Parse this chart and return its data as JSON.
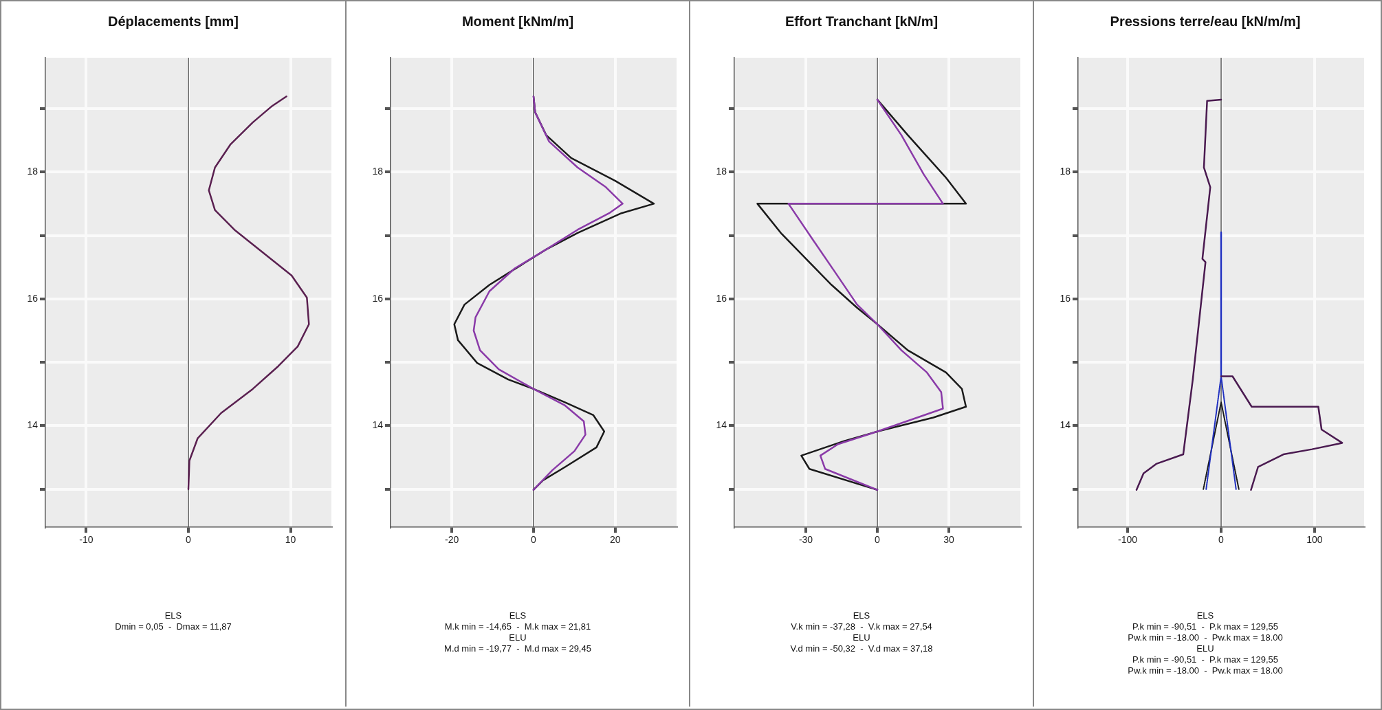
{
  "chart_data": [
    {
      "type": "line",
      "title": "Déplacements [mm]",
      "xlim": [
        -14,
        14
      ],
      "xticks": [
        -10,
        0,
        10
      ],
      "ylim": [
        12.4,
        19.8
      ],
      "yticks": [
        {
          "value": 13,
          "label": null
        },
        14,
        {
          "value": 15,
          "label": null
        },
        16,
        {
          "value": 17,
          "label": null
        },
        18,
        {
          "value": 19,
          "label": null
        }
      ],
      "grid": true,
      "marker": "none",
      "line_style": "solid",
      "ref_lines": [
        {
          "axis": "x",
          "value": 0,
          "color": "#555555"
        }
      ],
      "series": [
        {
          "color": "#5a2050",
          "x": [
            0,
            0.1,
            0.9,
            3.2,
            6.3,
            8.8,
            10.7,
            11.8,
            11.6,
            10.1,
            7.3,
            4.5,
            2.6,
            2.0,
            2.6,
            4.1,
            6.3,
            8.2,
            9.6
          ],
          "values": [
            13.0,
            13.45,
            13.8,
            14.2,
            14.58,
            14.94,
            15.25,
            15.6,
            16.02,
            16.37,
            16.73,
            17.09,
            17.4,
            17.71,
            18.07,
            18.43,
            18.78,
            19.04,
            19.19
          ]
        }
      ],
      "annotations": [
        "ELS",
        "Dmin = 0,05  -  Dmax = 11,87"
      ]
    },
    {
      "type": "line",
      "title": "Moment [kNm/m]",
      "xlim": [
        -35,
        35
      ],
      "xticks": [
        -20,
        0,
        20
      ],
      "ylim": [
        12.4,
        19.8
      ],
      "yticks": [
        {
          "value": 13,
          "label": null
        },
        14,
        {
          "value": 15,
          "label": null
        },
        16,
        {
          "value": 17,
          "label": null
        },
        18,
        {
          "value": 19,
          "label": null
        }
      ],
      "grid": true,
      "marker": "none",
      "line_style": "solid",
      "ref_lines": [
        {
          "axis": "x",
          "value": 0,
          "color": "#555555"
        }
      ],
      "series": [
        {
          "color": "#8a3aa8",
          "x": [
            0,
            0.4,
            3.8,
            10.8,
            17.7,
            21.81,
            18.5,
            10.8,
            3.1,
            -4.6,
            -10.8,
            -14.2,
            -14.65,
            -13.1,
            -8.5,
            0,
            7.7,
            12.3,
            12.7,
            10,
            4.6,
            0
          ],
          "values": [
            19.19,
            18.94,
            18.48,
            18.07,
            17.76,
            17.5,
            17.35,
            17.09,
            16.78,
            16.48,
            16.12,
            15.71,
            15.5,
            15.19,
            14.89,
            14.58,
            14.32,
            14.07,
            13.86,
            13.6,
            13.3,
            12.99
          ]
        },
        {
          "color": "#1a1a1a",
          "x": [
            0,
            0.4,
            3.1,
            9.2,
            20,
            29.45,
            21.5,
            10.8,
            3.1,
            -3.1,
            -10.8,
            -16.9,
            -19.4,
            -18.5,
            -13.8,
            -6.2,
            0,
            7.7,
            14.6,
            17.3,
            15.4,
            7.7,
            2.3,
            0
          ],
          "values": [
            19.19,
            18.94,
            18.58,
            18.22,
            17.86,
            17.5,
            17.35,
            17.04,
            16.78,
            16.53,
            16.22,
            15.91,
            15.6,
            15.35,
            14.99,
            14.73,
            14.58,
            14.37,
            14.17,
            13.91,
            13.66,
            13.35,
            13.14,
            12.99
          ]
        }
      ],
      "annotations": [
        "ELS",
        "M.k min = -14,65  -  M.k max = 21,81",
        "ELU",
        "M.d min = -19,77  -  M.d max = 29,45"
      ]
    },
    {
      "type": "line",
      "title": "Effort Tranchant [kN/m]",
      "xlim": [
        -60,
        60
      ],
      "xticks": [
        -30,
        0,
        30
      ],
      "ylim": [
        12.4,
        19.8
      ],
      "yticks": [
        {
          "value": 13,
          "label": null
        },
        14,
        {
          "value": 15,
          "label": null
        },
        16,
        {
          "value": 17,
          "label": null
        },
        18,
        {
          "value": 19,
          "label": null
        }
      ],
      "grid": true,
      "marker": "none",
      "line_style": "solid",
      "ref_lines": [
        {
          "axis": "x",
          "value": 0,
          "color": "#555555"
        }
      ],
      "series": [
        {
          "color": "#8a3aa8",
          "x": [
            0,
            10.1,
            19.5,
            27.54,
            -37.28,
            -27.2,
            -17.9,
            -8.5,
            0,
            10.1,
            20.8,
            26.8,
            27.54,
            0,
            -16.5,
            -23.9,
            -21.9,
            0
          ],
          "values": [
            19.14,
            18.58,
            17.96,
            17.5,
            17.5,
            16.94,
            16.43,
            15.91,
            15.6,
            15.19,
            14.84,
            14.53,
            14.27,
            13.91,
            13.71,
            13.53,
            13.32,
            12.99
          ]
        },
        {
          "color": "#1a1a1a",
          "x": [
            0,
            12.8,
            28.8,
            37.18,
            -50.32,
            -40.5,
            -29.9,
            -19.2,
            -8.5,
            0,
            12.8,
            28.8,
            35.5,
            37.18,
            23.5,
            0,
            -13.9,
            -31.9,
            -28.5,
            0
          ],
          "values": [
            19.14,
            18.58,
            17.91,
            17.5,
            17.5,
            17.04,
            16.63,
            16.22,
            15.86,
            15.6,
            15.19,
            14.84,
            14.58,
            14.3,
            14.13,
            13.91,
            13.76,
            13.53,
            13.32,
            12.99
          ]
        }
      ],
      "annotations": [
        "ELS",
        "V.k min = -37,28  -  V.k max = 27,54",
        "ELU",
        "V.d min = -50,32  -  V.d max = 37,18"
      ]
    },
    {
      "type": "line",
      "title": "Pressions terre/eau [kN/m/m]",
      "xlim": [
        -153,
        153
      ],
      "xticks": [
        -100,
        0,
        100
      ],
      "ylim": [
        12.4,
        19.8
      ],
      "yticks": [
        {
          "value": 13,
          "label": null
        },
        14,
        {
          "value": 15,
          "label": null
        },
        16,
        {
          "value": 17,
          "label": null
        },
        18,
        {
          "value": 19,
          "label": null
        }
      ],
      "grid": true,
      "marker": "none",
      "line_style": "solid",
      "ref_lines": [
        {
          "axis": "x",
          "value": 0,
          "color": "#555555"
        }
      ],
      "series": [
        {
          "color": "#4a1a50",
          "x": [
            0,
            -15,
            -18.4,
            -11.6,
            -20,
            -16.7,
            -30.3,
            -40.5,
            -69.4,
            -83,
            -90.51,
            null,
            0,
            12.2,
            32.7,
            104,
            107.5,
            129.55,
            97.3,
            66.7,
            39.5,
            32
          ],
          "values": [
            19.14,
            19.12,
            18.07,
            17.76,
            16.63,
            16.58,
            14.73,
            13.55,
            13.4,
            13.25,
            12.99,
            null,
            14.78,
            14.78,
            14.3,
            14.3,
            13.94,
            13.73,
            13.63,
            13.55,
            13.35,
            12.99
          ]
        },
        {
          "color": "#2030c0",
          "x": [
            0,
            0
          ],
          "values": [
            17.05,
            14.78
          ]
        },
        {
          "color": "#2030c0",
          "line_style": "dotted",
          "x": [
            -16,
            0,
            16
          ],
          "values": [
            13.0,
            14.78,
            13.0
          ]
        },
        {
          "color": "#1a1a1a",
          "line_style": "dotted",
          "x": [
            -19,
            0,
            19
          ],
          "values": [
            13.0,
            14.37,
            13.0
          ]
        }
      ],
      "annotations": [
        "ELS",
        "P.k min = -90,51  -  P.k max = 129,55",
        "Pw.k min = -18.00  -  Pw.k max = 18.00",
        "ELU",
        "P.k min = -90,51  -  P.k max = 129,55",
        "Pw.k min = -18.00  -  Pw.k max = 18.00"
      ]
    }
  ]
}
